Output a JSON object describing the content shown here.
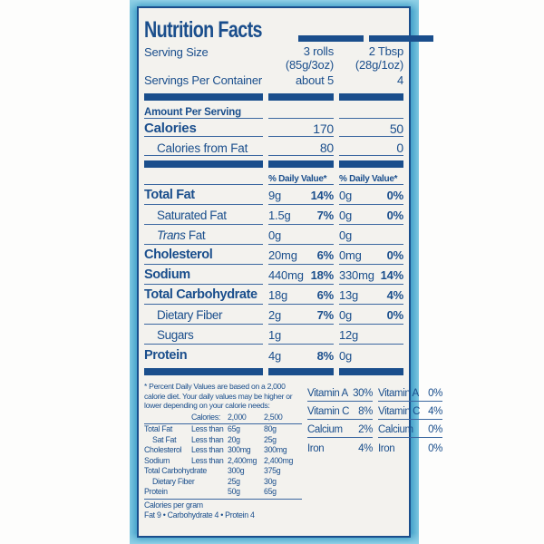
{
  "colors": {
    "navy": "#1a4e8c",
    "teal": "#2e93c1",
    "label_bg": "#f3f2ee"
  },
  "label": {
    "title": "Nutrition Facts",
    "serving": {
      "size_label": "Serving Size",
      "col1_line1": "3 rolls",
      "col1_line2": "(85g/3oz)",
      "col2_line1": "2 Tbsp",
      "col2_line2": "(28g/1oz)",
      "per_container_label": "Servings Per Container",
      "per_container_col1": "about 5",
      "per_container_col2": "4"
    },
    "amount_per_serving": "Amount Per Serving",
    "calories": {
      "label": "Calories",
      "col1": "170",
      "col2": "50"
    },
    "calories_from_fat": {
      "label": "Calories from Fat",
      "col1": "80",
      "col2": "0"
    },
    "daily_value_header_col1": "% Daily Value*",
    "daily_value_header_col2": "% Daily Value*",
    "nutrients": [
      {
        "label": "Total Fat",
        "c1a": "9g",
        "c1p": "14%",
        "c2a": "0g",
        "c2p": "0%"
      },
      {
        "label": "Saturated Fat",
        "c1a": "1.5g",
        "c1p": "7%",
        "c2a": "0g",
        "c2p": "0%"
      },
      {
        "label_italic": "Trans",
        "label": " Fat",
        "c1a": "0g",
        "c1p": "",
        "c2a": "0g",
        "c2p": ""
      },
      {
        "label": "Cholesterol",
        "c1a": "20mg",
        "c1p": "6%",
        "c2a": "0mg",
        "c2p": "0%"
      },
      {
        "label": "Sodium",
        "c1a": "440mg",
        "c1p": "18%",
        "c2a": "330mg",
        "c2p": "14%"
      },
      {
        "label": "Total Carbohydrate",
        "c1a": "18g",
        "c1p": "6%",
        "c2a": "13g",
        "c2p": "4%"
      },
      {
        "label": "Dietary Fiber",
        "c1a": "2g",
        "c1p": "7%",
        "c2a": "0g",
        "c2p": "0%"
      },
      {
        "label": "Sugars",
        "c1a": "1g",
        "c1p": "",
        "c2a": "12g",
        "c2p": ""
      },
      {
        "label": "Protein",
        "c1a": "4g",
        "c1p": "8%",
        "c2a": "0g",
        "c2p": ""
      }
    ],
    "vitamins": [
      {
        "n1": "Vitamin A",
        "p1": "30%",
        "n2": "Vitamin A",
        "p2": "0%"
      },
      {
        "n1": "Vitamin C",
        "p1": "8%",
        "n2": "Vitamin C",
        "p2": "4%"
      },
      {
        "n1": "Calcium",
        "p1": "2%",
        "n2": "Calcium",
        "p2": "0%"
      },
      {
        "n1": "Iron",
        "p1": "4%",
        "n2": "Iron",
        "p2": "0%"
      }
    ],
    "footnote": "* Percent Daily Values are based on a 2,000 calorie diet. Your daily values may be higher or lower depending on your calorie needs:",
    "ref_table": {
      "header": {
        "calories": "Calories:",
        "c2000": "2,000",
        "c2500": "2,500"
      },
      "rows": [
        {
          "name": "Total Fat",
          "cond": "Less than",
          "v1": "65g",
          "v2": "80g"
        },
        {
          "name": "Sat Fat",
          "cond": "Less than",
          "v1": "20g",
          "v2": "25g"
        },
        {
          "name": "Cholesterol",
          "cond": "Less than",
          "v1": "300mg",
          "v2": "300mg"
        },
        {
          "name": "Sodium",
          "cond": "Less than",
          "v1": "2,400mg",
          "v2": "2,400mg"
        },
        {
          "name": "Total Carbohydrate",
          "cond": "",
          "v1": "300g",
          "v2": "375g"
        },
        {
          "name": "Dietary Fiber",
          "cond": "",
          "v1": "25g",
          "v2": "30g"
        },
        {
          "name": "Protein",
          "cond": "",
          "v1": "50g",
          "v2": "65g"
        }
      ]
    },
    "calories_per_gram": {
      "title": "Calories per gram",
      "line": "Fat 9 • Carbohydrate 4 • Protein 4"
    }
  }
}
